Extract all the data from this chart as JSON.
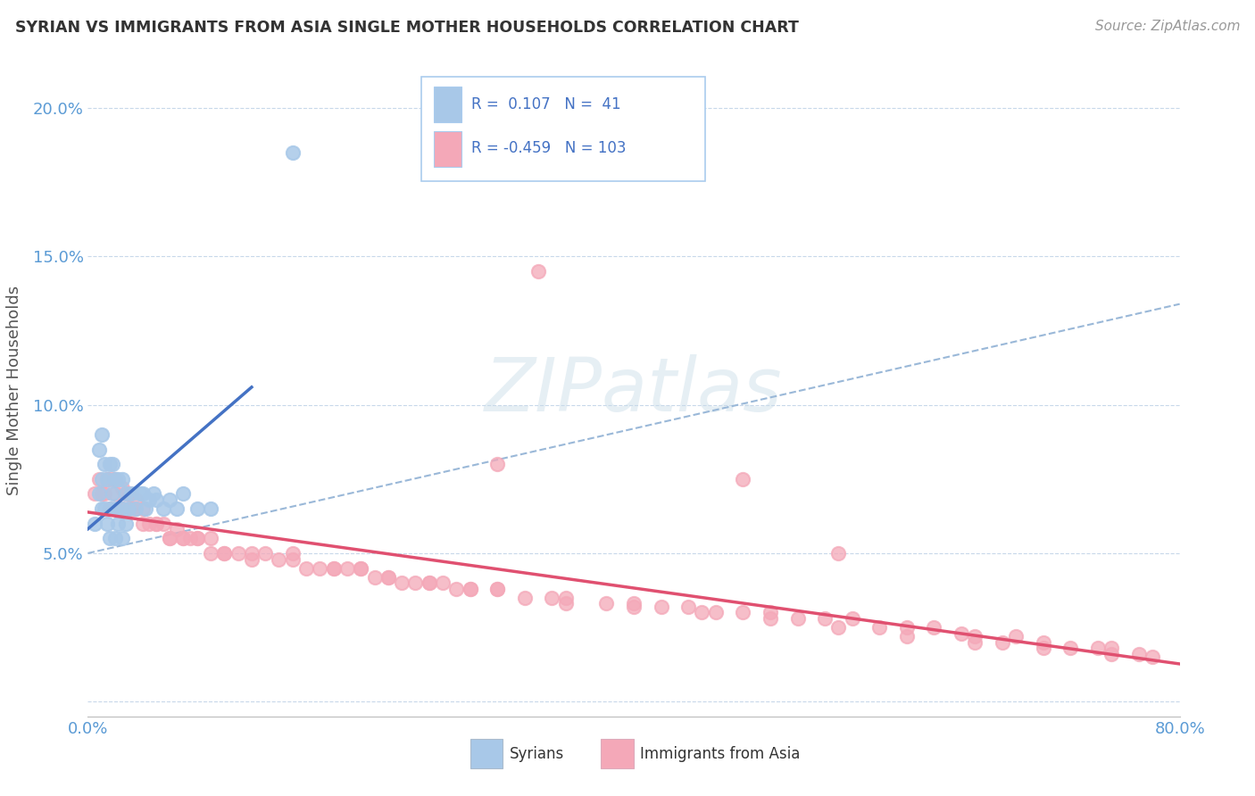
{
  "title": "SYRIAN VS IMMIGRANTS FROM ASIA SINGLE MOTHER HOUSEHOLDS CORRELATION CHART",
  "source": "Source: ZipAtlas.com",
  "ylabel": "Single Mother Households",
  "syrians_color": "#a8c8e8",
  "asia_color": "#f4a8b8",
  "trendline_syrian_color": "#4472c4",
  "trendline_asia_color": "#e05070",
  "trendline_dashed_color": "#9ab8d8",
  "xlim": [
    0.0,
    0.8
  ],
  "ylim": [
    -0.005,
    0.215
  ],
  "xtick_positions": [
    0.0,
    0.1,
    0.2,
    0.3,
    0.4,
    0.5,
    0.6,
    0.7,
    0.8
  ],
  "xticklabels": [
    "0.0%",
    "",
    "",
    "",
    "",
    "",
    "",
    "",
    "80.0%"
  ],
  "ytick_positions": [
    0.0,
    0.05,
    0.1,
    0.15,
    0.2
  ],
  "yticklabels": [
    "",
    "5.0%",
    "10.0%",
    "15.0%",
    "20.0%"
  ],
  "syrians_x": [
    0.005,
    0.008,
    0.008,
    0.01,
    0.01,
    0.01,
    0.012,
    0.012,
    0.014,
    0.014,
    0.016,
    0.016,
    0.016,
    0.018,
    0.018,
    0.02,
    0.02,
    0.02,
    0.022,
    0.022,
    0.025,
    0.025,
    0.025,
    0.028,
    0.028,
    0.03,
    0.032,
    0.035,
    0.038,
    0.04,
    0.042,
    0.045,
    0.048,
    0.05,
    0.055,
    0.06,
    0.065,
    0.07,
    0.08,
    0.09,
    0.15
  ],
  "syrians_y": [
    0.06,
    0.07,
    0.085,
    0.065,
    0.075,
    0.09,
    0.065,
    0.08,
    0.06,
    0.075,
    0.055,
    0.065,
    0.08,
    0.07,
    0.08,
    0.055,
    0.065,
    0.075,
    0.06,
    0.075,
    0.055,
    0.065,
    0.075,
    0.06,
    0.07,
    0.065,
    0.07,
    0.065,
    0.07,
    0.07,
    0.065,
    0.068,
    0.07,
    0.068,
    0.065,
    0.068,
    0.065,
    0.07,
    0.065,
    0.065,
    0.185
  ],
  "asia_x": [
    0.005,
    0.008,
    0.01,
    0.012,
    0.014,
    0.016,
    0.018,
    0.02,
    0.022,
    0.025,
    0.028,
    0.03,
    0.032,
    0.035,
    0.04,
    0.045,
    0.05,
    0.055,
    0.06,
    0.065,
    0.07,
    0.075,
    0.08,
    0.09,
    0.1,
    0.11,
    0.12,
    0.13,
    0.14,
    0.15,
    0.16,
    0.17,
    0.18,
    0.19,
    0.2,
    0.21,
    0.22,
    0.23,
    0.24,
    0.25,
    0.26,
    0.27,
    0.28,
    0.3,
    0.32,
    0.34,
    0.35,
    0.38,
    0.4,
    0.42,
    0.44,
    0.46,
    0.48,
    0.5,
    0.52,
    0.54,
    0.56,
    0.58,
    0.6,
    0.62,
    0.64,
    0.65,
    0.67,
    0.68,
    0.7,
    0.72,
    0.74,
    0.75,
    0.77,
    0.78,
    0.015,
    0.02,
    0.025,
    0.03,
    0.035,
    0.04,
    0.05,
    0.06,
    0.07,
    0.08,
    0.09,
    0.1,
    0.12,
    0.15,
    0.18,
    0.2,
    0.22,
    0.25,
    0.28,
    0.3,
    0.35,
    0.4,
    0.45,
    0.5,
    0.55,
    0.6,
    0.65,
    0.7,
    0.75,
    0.33,
    0.3,
    0.48,
    0.55
  ],
  "asia_y": [
    0.07,
    0.075,
    0.07,
    0.07,
    0.075,
    0.065,
    0.075,
    0.07,
    0.065,
    0.065,
    0.07,
    0.065,
    0.065,
    0.065,
    0.06,
    0.06,
    0.06,
    0.06,
    0.055,
    0.058,
    0.055,
    0.055,
    0.055,
    0.055,
    0.05,
    0.05,
    0.05,
    0.05,
    0.048,
    0.05,
    0.045,
    0.045,
    0.045,
    0.045,
    0.045,
    0.042,
    0.042,
    0.04,
    0.04,
    0.04,
    0.04,
    0.038,
    0.038,
    0.038,
    0.035,
    0.035,
    0.035,
    0.033,
    0.033,
    0.032,
    0.032,
    0.03,
    0.03,
    0.03,
    0.028,
    0.028,
    0.028,
    0.025,
    0.025,
    0.025,
    0.023,
    0.022,
    0.02,
    0.022,
    0.02,
    0.018,
    0.018,
    0.018,
    0.016,
    0.015,
    0.075,
    0.075,
    0.072,
    0.07,
    0.068,
    0.065,
    0.06,
    0.055,
    0.055,
    0.055,
    0.05,
    0.05,
    0.048,
    0.048,
    0.045,
    0.045,
    0.042,
    0.04,
    0.038,
    0.038,
    0.033,
    0.032,
    0.03,
    0.028,
    0.025,
    0.022,
    0.02,
    0.018,
    0.016,
    0.145,
    0.08,
    0.075,
    0.05
  ]
}
